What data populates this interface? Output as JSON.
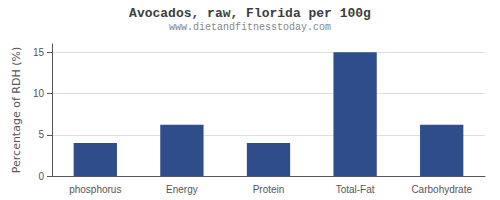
{
  "chart_data": {
    "type": "bar",
    "title": "Avocados, raw, Florida per 100g",
    "subtitle": "www.dietandfitnesstoday.com",
    "ylabel": "Percentage of RDH (%)",
    "categories": [
      "phosphorus",
      "Energy",
      "Protein",
      "Total-Fat",
      "Carbohydrate"
    ],
    "values": [
      4,
      6.2,
      4,
      15,
      6.2
    ],
    "color": "#2e4d8a",
    "ylim": [
      0,
      16
    ],
    "yticks": [
      0,
      5,
      10,
      15
    ],
    "grid": true
  }
}
